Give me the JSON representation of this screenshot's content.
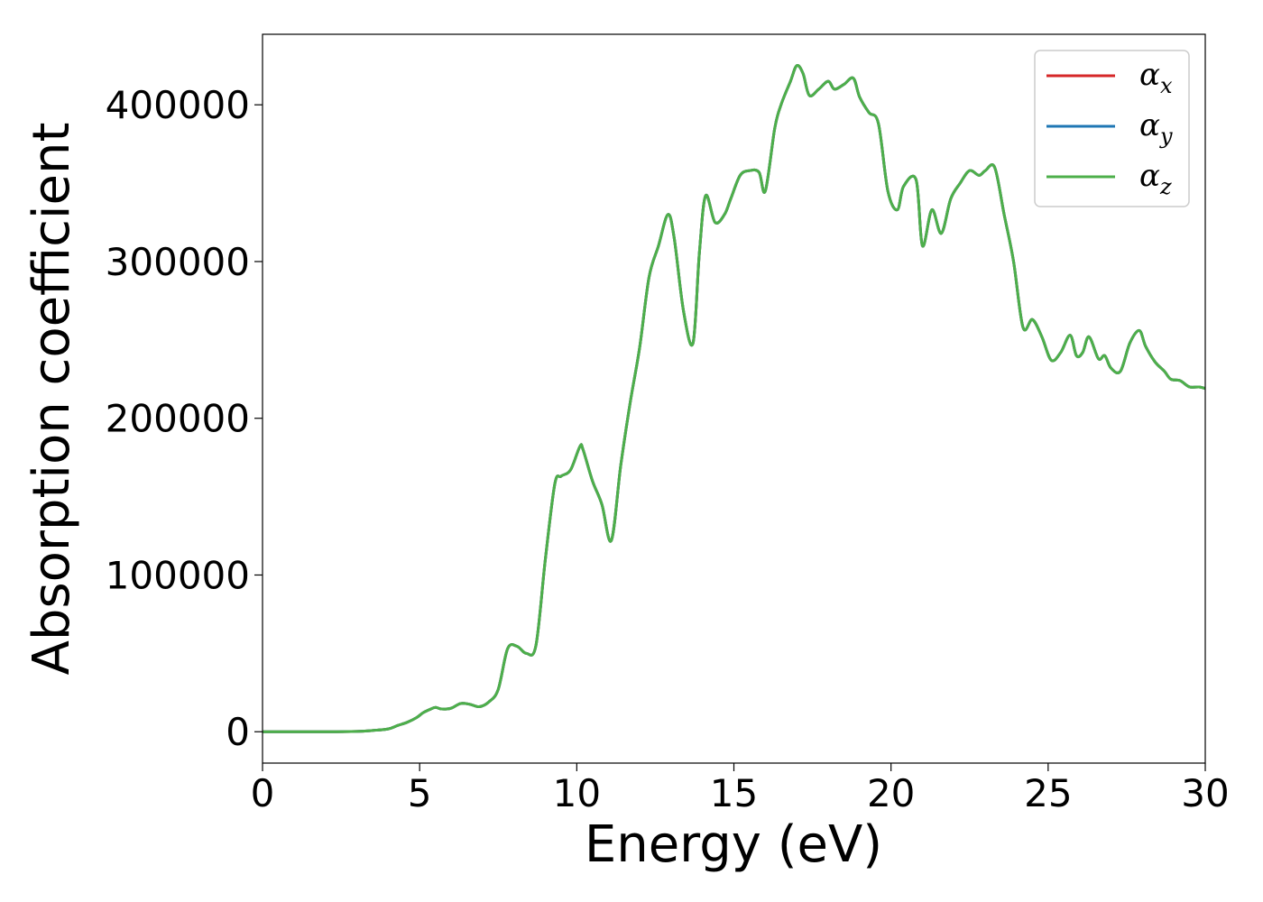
{
  "chart_data": {
    "type": "line",
    "title": "",
    "xlabel": "Energy (eV)",
    "ylabel": "Absorption coefficient",
    "xlim": [
      0,
      30
    ],
    "ylim": [
      -20000,
      445000
    ],
    "x_ticks": [
      "0",
      "5",
      "10",
      "15",
      "20",
      "25",
      "30"
    ],
    "y_ticks": [
      "0",
      "100000",
      "200000",
      "300000",
      "400000"
    ],
    "grid": false,
    "legend_position": "upper right",
    "series": [
      {
        "name": "α",
        "subscript": "x",
        "color": "#d62728"
      },
      {
        "name": "α",
        "subscript": "y",
        "color": "#1f77b4"
      },
      {
        "name": "α",
        "subscript": "z",
        "color": "#4daf4a"
      }
    ],
    "x": [
      0,
      1,
      2,
      3,
      3.5,
      4,
      4.3,
      4.6,
      4.9,
      5.1,
      5.3,
      5.5,
      5.7,
      6.0,
      6.3,
      6.6,
      6.9,
      7.2,
      7.5,
      7.8,
      8.1,
      8.4,
      8.7,
      9.0,
      9.3,
      9.5,
      9.8,
      10.1,
      10.2,
      10.5,
      10.8,
      11.1,
      11.4,
      11.7,
      12.0,
      12.3,
      12.6,
      12.9,
      13.1,
      13.4,
      13.7,
      13.9,
      14.1,
      14.4,
      14.7,
      14.9,
      15.2,
      15.5,
      15.8,
      16.0,
      16.3,
      16.5,
      16.8,
      17.0,
      17.2,
      17.4,
      17.7,
      18.0,
      18.2,
      18.5,
      18.8,
      19.0,
      19.3,
      19.6,
      19.9,
      20.2,
      20.4,
      20.8,
      21.0,
      21.3,
      21.6,
      21.9,
      22.2,
      22.5,
      22.8,
      23.0,
      23.3,
      23.6,
      23.9,
      24.2,
      24.5,
      24.8,
      25.1,
      25.4,
      25.7,
      25.9,
      26.1,
      26.3,
      26.6,
      26.8,
      27.0,
      27.3,
      27.6,
      27.9,
      28.1,
      28.4,
      28.7,
      28.9,
      29.2,
      29.5,
      29.8,
      30.0
    ],
    "values": [
      0,
      0,
      0,
      200,
      800,
      1800,
      4000,
      6000,
      9000,
      12000,
      14000,
      15500,
      14500,
      15000,
      18000,
      17500,
      16000,
      19000,
      27000,
      53000,
      54500,
      50000,
      55000,
      110000,
      158000,
      163000,
      167000,
      182000,
      180000,
      160000,
      145000,
      122000,
      170000,
      210000,
      245000,
      290000,
      310000,
      330000,
      315000,
      268000,
      248000,
      305000,
      342000,
      325000,
      330000,
      340000,
      355000,
      358000,
      357000,
      345000,
      385000,
      400000,
      415000,
      425000,
      420000,
      406000,
      410000,
      415000,
      410000,
      413000,
      417000,
      405000,
      395000,
      388000,
      345000,
      333000,
      348000,
      352000,
      310000,
      333000,
      318000,
      340000,
      350000,
      358000,
      355000,
      358000,
      360000,
      330000,
      300000,
      258000,
      263000,
      252000,
      237000,
      242000,
      253000,
      240000,
      242000,
      252000,
      238000,
      240000,
      232000,
      230000,
      248000,
      256000,
      246000,
      236000,
      230000,
      225000,
      224000,
      220000,
      220000,
      219000
    ]
  }
}
